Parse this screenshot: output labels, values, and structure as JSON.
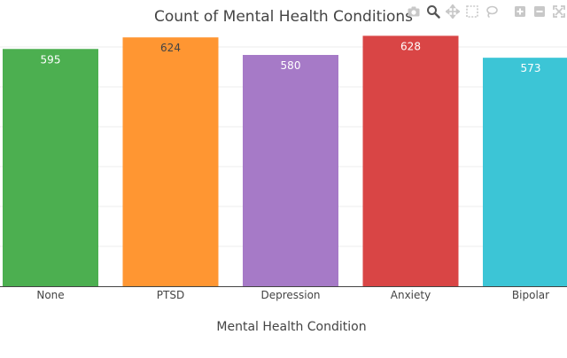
{
  "chart_data": {
    "type": "bar",
    "title": "Count of Mental Health Conditions",
    "xlabel": "Mental Health Condition",
    "ylabel": "",
    "categories": [
      "None",
      "PTSD",
      "Depression",
      "Anxiety",
      "Bipolar"
    ],
    "values": [
      595,
      624,
      580,
      628,
      573
    ],
    "colors": [
      "#4caf50",
      "#ff9632",
      "#a67ac7",
      "#d94545",
      "#3cc5d6"
    ],
    "ylim": [
      0,
      640
    ],
    "grid": true,
    "legend": "none"
  },
  "modebar": {
    "icons": [
      "camera-icon",
      "zoom-icon",
      "pan-icon",
      "box-select-icon",
      "lasso-select-icon",
      "zoom-in-icon",
      "zoom-out-icon",
      "autoscale-icon"
    ]
  }
}
